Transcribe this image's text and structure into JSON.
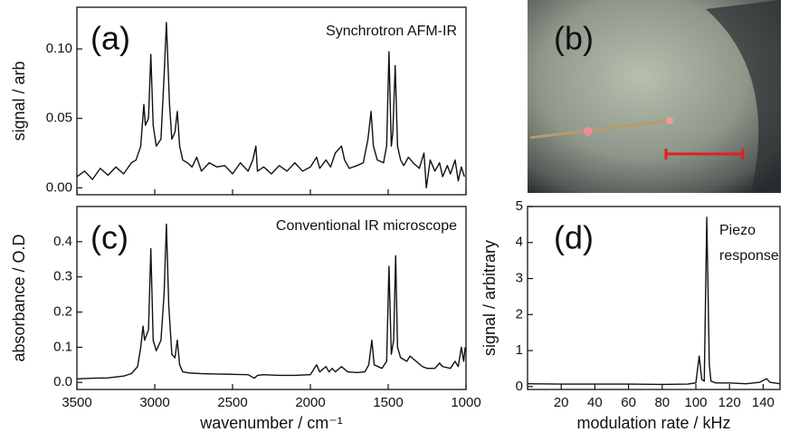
{
  "chart_data": [
    {
      "type": "line",
      "label": "(a)",
      "title": "Synchrotron AFM-IR",
      "ylabel": "signal / arb",
      "color": "#111111",
      "xlim": [
        3500,
        1000
      ],
      "xticks": [
        3500,
        3000,
        2500,
        2000,
        1500,
        1000
      ],
      "xtick_labels": false,
      "ylim": [
        -0.005,
        0.13
      ],
      "yticks": [
        {
          "value": 0,
          "label": "0.00"
        },
        {
          "value": 0.05,
          "label": "0.05"
        },
        {
          "value": 0.1,
          "label": "0.10"
        }
      ],
      "x": [
        3500,
        3450,
        3400,
        3350,
        3300,
        3250,
        3200,
        3150,
        3120,
        3090,
        3070,
        3060,
        3040,
        3025,
        3010,
        2990,
        2960,
        2940,
        2925,
        2905,
        2890,
        2870,
        2855,
        2840,
        2820,
        2790,
        2760,
        2730,
        2700,
        2650,
        2600,
        2550,
        2500,
        2450,
        2400,
        2370,
        2350,
        2340,
        2300,
        2250,
        2200,
        2150,
        2100,
        2050,
        2000,
        1960,
        1940,
        1900,
        1870,
        1840,
        1800,
        1780,
        1750,
        1700,
        1660,
        1630,
        1610,
        1595,
        1570,
        1530,
        1510,
        1495,
        1480,
        1470,
        1455,
        1440,
        1420,
        1400,
        1370,
        1340,
        1300,
        1270,
        1255,
        1230,
        1200,
        1170,
        1150,
        1120,
        1100,
        1070,
        1050,
        1030,
        1010
      ],
      "values": [
        0.008,
        0.012,
        0.006,
        0.014,
        0.009,
        0.015,
        0.01,
        0.018,
        0.02,
        0.03,
        0.06,
        0.045,
        0.05,
        0.096,
        0.045,
        0.03,
        0.035,
        0.08,
        0.119,
        0.06,
        0.035,
        0.04,
        0.055,
        0.03,
        0.02,
        0.018,
        0.015,
        0.022,
        0.012,
        0.018,
        0.015,
        0.016,
        0.01,
        0.018,
        0.012,
        0.02,
        0.03,
        0.012,
        0.015,
        0.01,
        0.016,
        0.012,
        0.018,
        0.012,
        0.015,
        0.022,
        0.014,
        0.02,
        0.015,
        0.025,
        0.03,
        0.02,
        0.014,
        0.016,
        0.018,
        0.035,
        0.055,
        0.03,
        0.02,
        0.018,
        0.03,
        0.098,
        0.03,
        0.04,
        0.088,
        0.03,
        0.02,
        0.016,
        0.022,
        0.018,
        0.014,
        0.025,
        0.0,
        0.02,
        0.012,
        0.018,
        0.008,
        0.016,
        0.01,
        0.02,
        0.005,
        0.015,
        0.008
      ]
    },
    {
      "type": "line",
      "label": "(c)",
      "title": "Conventional IR microscope",
      "ylabel": "absorbance / O.D",
      "xlabel": "wavenumber / cm⁻¹",
      "color": "#111111",
      "xlim": [
        3500,
        1000
      ],
      "xticks": [
        3500,
        3000,
        2500,
        2000,
        1500,
        1000
      ],
      "xtick_labels": true,
      "ylim": [
        -0.02,
        0.5
      ],
      "yticks": [
        {
          "value": 0,
          "label": "0.0"
        },
        0.1,
        0.2,
        0.3,
        0.4
      ],
      "x": [
        3500,
        3400,
        3300,
        3200,
        3150,
        3110,
        3090,
        3075,
        3065,
        3040,
        3025,
        3010,
        2990,
        2960,
        2940,
        2925,
        2910,
        2890,
        2870,
        2855,
        2840,
        2820,
        2780,
        2700,
        2600,
        2500,
        2400,
        2360,
        2340,
        2300,
        2200,
        2100,
        2000,
        1960,
        1940,
        1900,
        1880,
        1860,
        1840,
        1800,
        1760,
        1700,
        1650,
        1625,
        1605,
        1590,
        1540,
        1510,
        1495,
        1480,
        1465,
        1452,
        1440,
        1420,
        1380,
        1360,
        1320,
        1280,
        1250,
        1200,
        1170,
        1150,
        1100,
        1070,
        1050,
        1030,
        1015,
        1005
      ],
      "values": [
        0.01,
        0.012,
        0.013,
        0.018,
        0.025,
        0.045,
        0.1,
        0.16,
        0.12,
        0.15,
        0.38,
        0.12,
        0.09,
        0.12,
        0.25,
        0.45,
        0.22,
        0.08,
        0.07,
        0.12,
        0.05,
        0.03,
        0.027,
        0.025,
        0.024,
        0.023,
        0.022,
        0.012,
        0.02,
        0.022,
        0.02,
        0.02,
        0.022,
        0.05,
        0.03,
        0.045,
        0.03,
        0.04,
        0.03,
        0.045,
        0.03,
        0.028,
        0.03,
        0.05,
        0.12,
        0.05,
        0.04,
        0.06,
        0.33,
        0.08,
        0.12,
        0.36,
        0.1,
        0.07,
        0.06,
        0.075,
        0.06,
        0.045,
        0.04,
        0.04,
        0.055,
        0.045,
        0.04,
        0.06,
        0.045,
        0.1,
        0.06,
        0.1
      ]
    },
    {
      "type": "line",
      "label": "(d)",
      "annotation_lines": [
        "Piezo",
        "response"
      ],
      "ylabel": "signal / arbitrary",
      "xlabel": "modulation rate / kHz",
      "color": "#111111",
      "xlim": [
        0,
        150
      ],
      "xticks": [
        20,
        40,
        60,
        80,
        100,
        120,
        140
      ],
      "xtick_labels": true,
      "ylim": [
        -0.08,
        5
      ],
      "yticks": [
        0,
        1,
        2,
        3,
        4,
        5
      ],
      "x": [
        0,
        20,
        40,
        60,
        80,
        95,
        100,
        102,
        103.5,
        105,
        106.5,
        108,
        109,
        112,
        120,
        130,
        138,
        142,
        144,
        150
      ],
      "values": [
        0.08,
        0.07,
        0.07,
        0.07,
        0.06,
        0.07,
        0.1,
        0.85,
        0.2,
        0.15,
        4.7,
        0.6,
        0.15,
        0.1,
        0.1,
        0.08,
        0.12,
        0.22,
        0.12,
        0.08
      ]
    }
  ],
  "image_panel": {
    "label": "(b)"
  }
}
